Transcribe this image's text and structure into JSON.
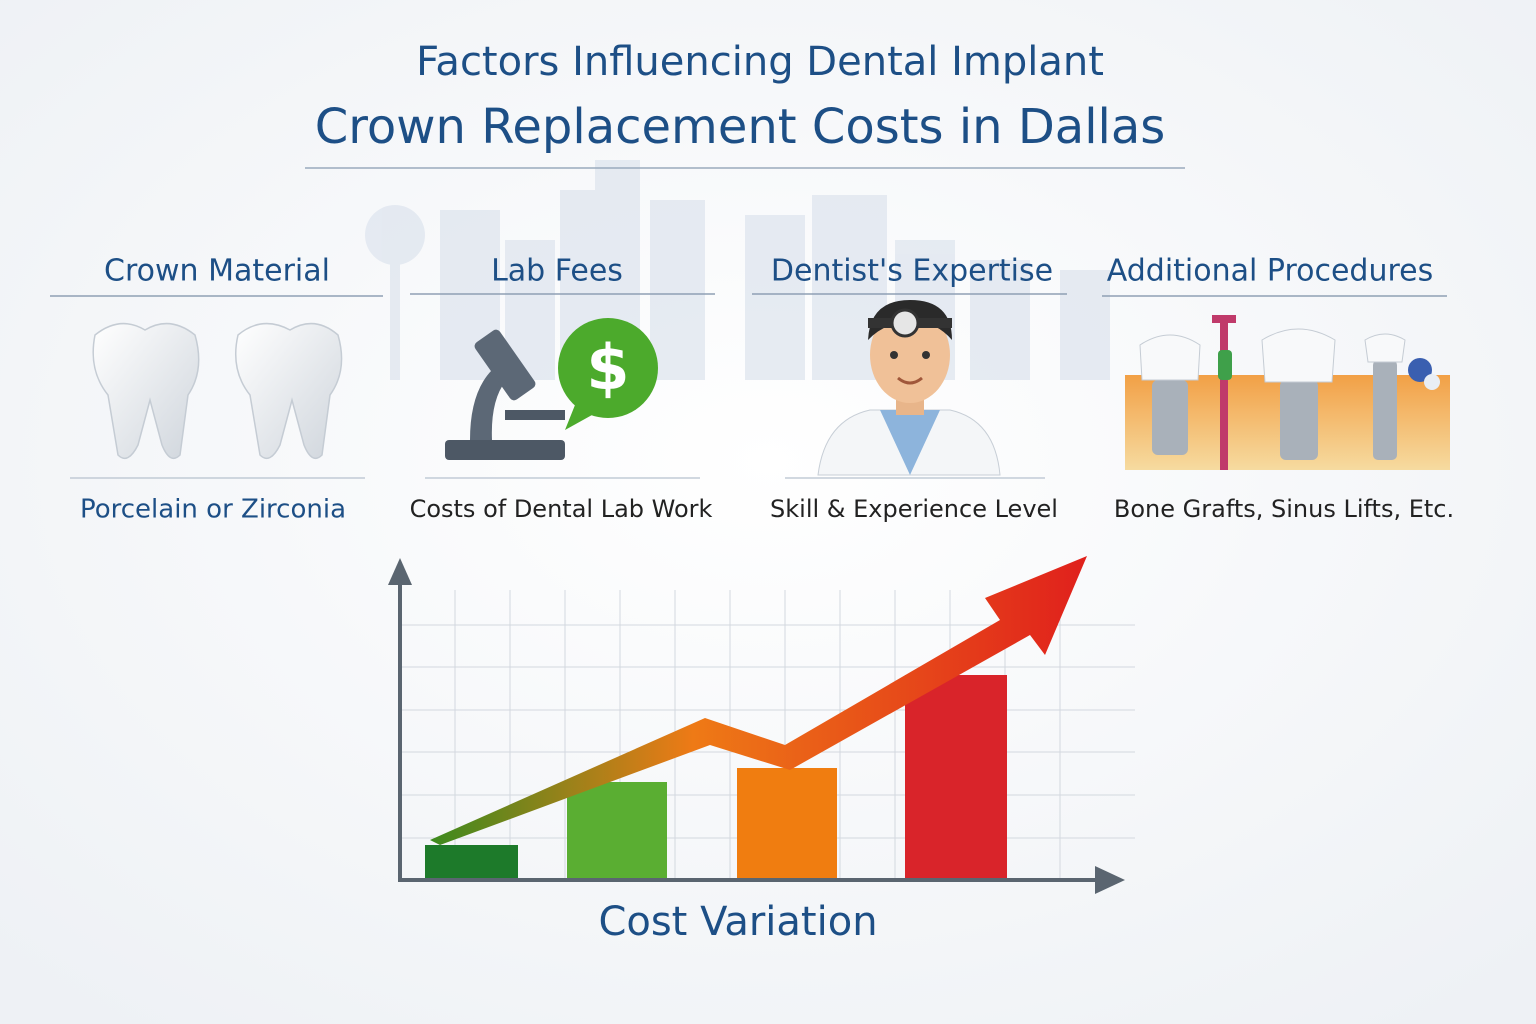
{
  "header": {
    "title_line1": "Factors Influencing Dental Implant",
    "title_line2": "Crown Replacement Costs in Dallas"
  },
  "factors": [
    {
      "heading": "Crown Material",
      "caption": "Porcelain or Zirconia"
    },
    {
      "heading": "Lab Fees",
      "caption": "Costs of Dental Lab Work"
    },
    {
      "heading": "Dentist's Expertise",
      "caption": "Skill & Experience Level"
    },
    {
      "heading": "Additional Procedures",
      "caption": "Bone Grafts, Sinus Lifts, Etc."
    }
  ],
  "chart": {
    "label": "Cost Variation"
  }
}
